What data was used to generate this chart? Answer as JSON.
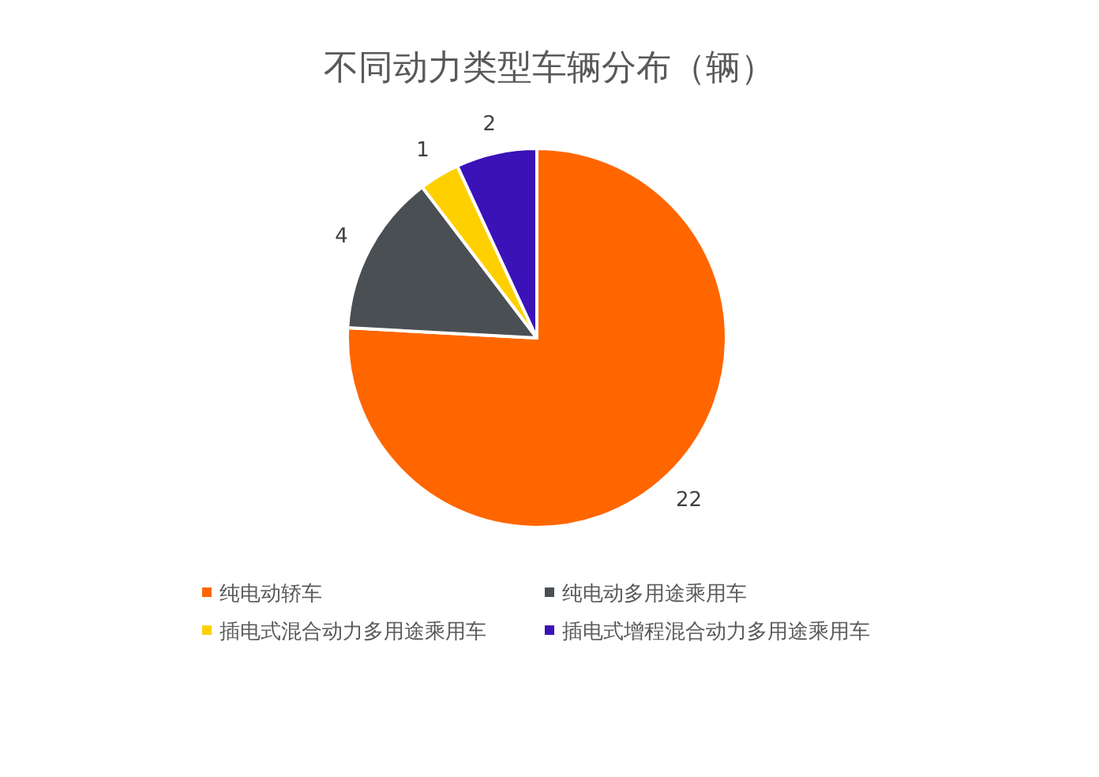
{
  "chart_data": {
    "type": "pie",
    "title": "不同动力类型车辆分布（辆）",
    "categories": [
      "纯电动轿车",
      "纯电动多用途乘用车",
      "插电式混合动力多用途乘用车",
      "插电式增程混合动力多用途乘用车"
    ],
    "values": [
      22,
      4,
      1,
      2
    ],
    "colors": [
      "#ff6600",
      "#4a4f54",
      "#ffd000",
      "#3a12b8"
    ],
    "data_labels": true,
    "legend": "bottom"
  }
}
